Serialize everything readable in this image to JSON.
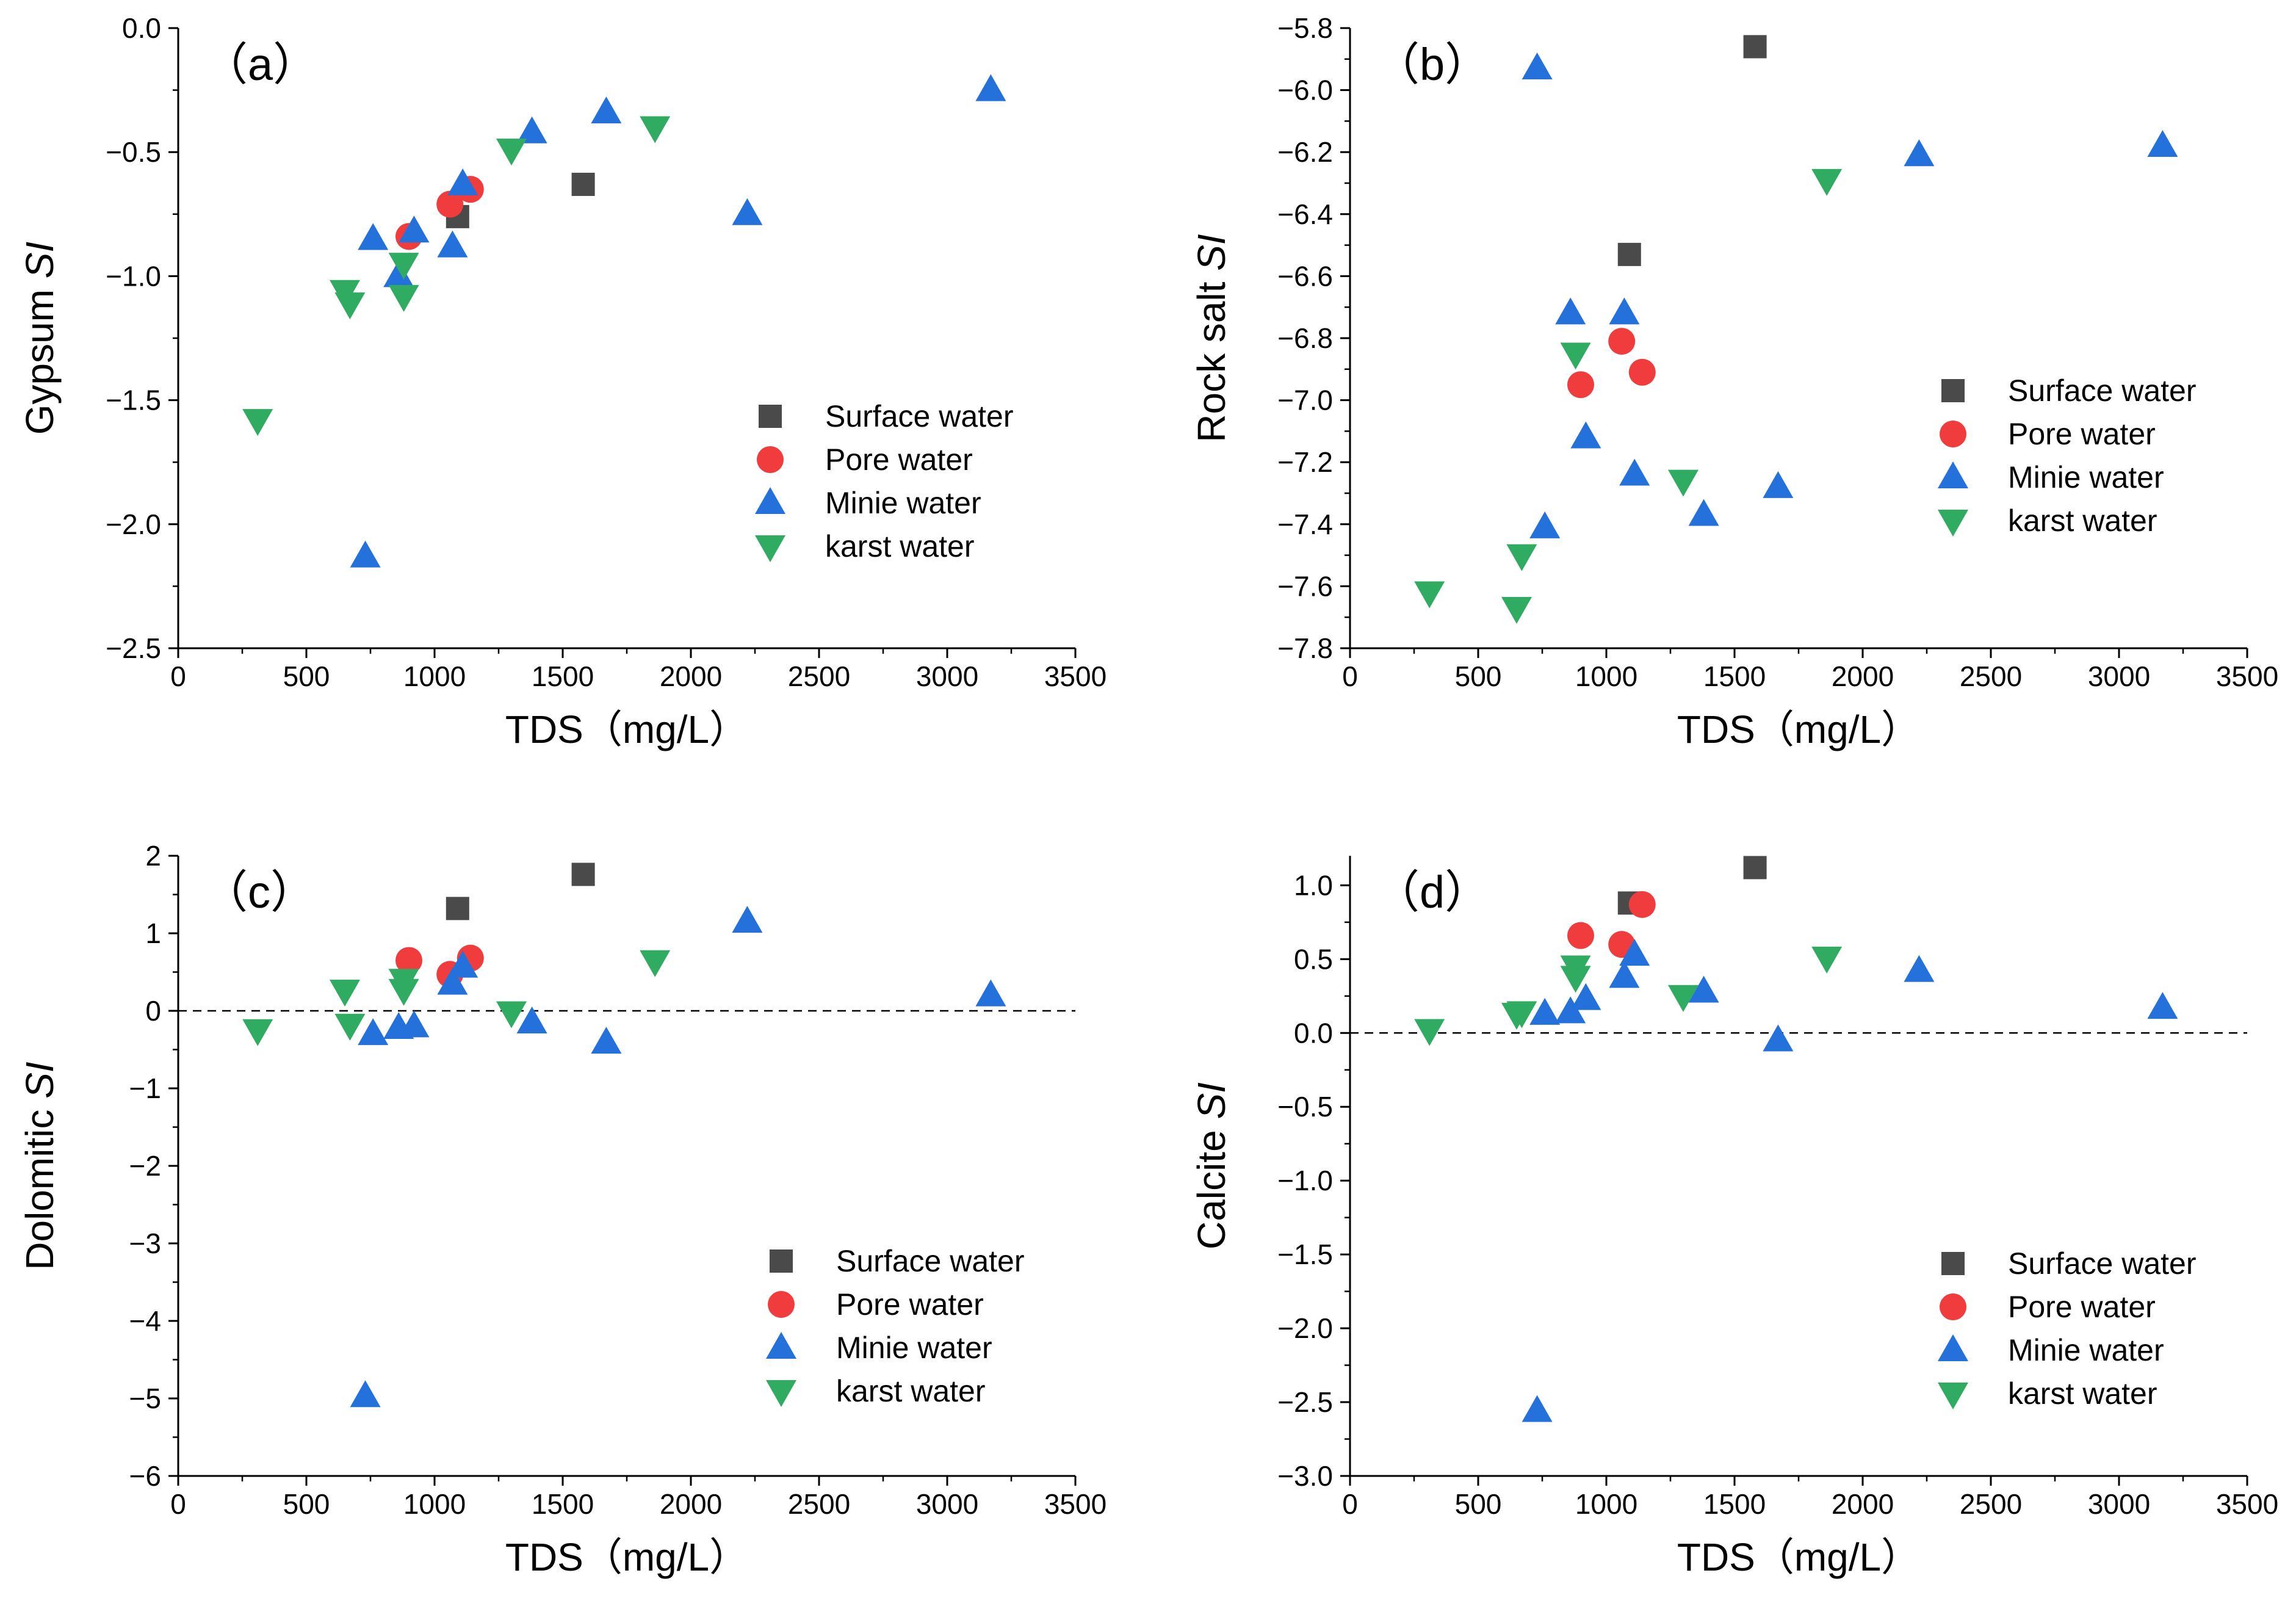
{
  "chart_data": [
    {
      "type": "scatter",
      "panel_label": "（a）",
      "title": "",
      "xlabel": "TDS（mg/L）",
      "ylabel_main": "Gypsum",
      "ylabel_italic": "SI",
      "xlim": [
        0,
        3500
      ],
      "ylim": [
        -2.5,
        0.0
      ],
      "xticks": [
        0,
        500,
        1000,
        1500,
        2000,
        2500,
        3000,
        3500
      ],
      "xtick_labels": [
        "0",
        "500",
        "1000",
        "1500",
        "2000",
        "2500",
        "3000",
        "3500"
      ],
      "yticks": [
        -2.5,
        -2.0,
        -1.5,
        -1.0,
        -0.5,
        0.0
      ],
      "ytick_labels": [
        "−2.5",
        "−2.0",
        "−1.5",
        "−1.0",
        "−0.5",
        "0.0"
      ],
      "reference_line": null,
      "legend_position": "lower-right",
      "series": [
        {
          "name": "Surface water",
          "marker": "square",
          "color": "#4a4a4a",
          "points": [
            [
              1090,
              -0.76
            ],
            [
              1580,
              -0.63
            ]
          ]
        },
        {
          "name": "Pore water",
          "marker": "circle",
          "color": "#f03c3c",
          "points": [
            [
              900,
              -0.84
            ],
            [
              1060,
              -0.71
            ],
            [
              1140,
              -0.65
            ]
          ]
        },
        {
          "name": "Minie water",
          "marker": "triangle-up",
          "color": "#2471dc",
          "points": [
            [
              730,
              -2.13
            ],
            [
              760,
              -0.85
            ],
            [
              860,
              -1.0
            ],
            [
              920,
              -0.82
            ],
            [
              1070,
              -0.88
            ],
            [
              1110,
              -0.63
            ],
            [
              1380,
              -0.42
            ],
            [
              1670,
              -0.34
            ],
            [
              2220,
              -0.75
            ],
            [
              3170,
              -0.25
            ]
          ]
        },
        {
          "name": "karst water",
          "marker": "triangle-down",
          "color": "#2fac62",
          "points": [
            [
              310,
              -1.58
            ],
            [
              650,
              -1.06
            ],
            [
              670,
              -1.11
            ],
            [
              880,
              -0.95
            ],
            [
              880,
              -1.08
            ],
            [
              1300,
              -0.49
            ],
            [
              1860,
              -0.4
            ]
          ]
        }
      ]
    },
    {
      "type": "scatter",
      "panel_label": "（b）",
      "title": "",
      "xlabel": "TDS（mg/L）",
      "ylabel_main": "Rock salt",
      "ylabel_italic": "SI",
      "xlim": [
        0,
        3500
      ],
      "ylim": [
        -7.8,
        -5.8
      ],
      "xticks": [
        0,
        500,
        1000,
        1500,
        2000,
        2500,
        3000,
        3500
      ],
      "xtick_labels": [
        "0",
        "500",
        "1000",
        "1500",
        "2000",
        "2500",
        "3000",
        "3500"
      ],
      "yticks": [
        -7.8,
        -7.6,
        -7.4,
        -7.2,
        -7.0,
        -6.8,
        -6.6,
        -6.4,
        -6.2,
        -6.0,
        -5.8
      ],
      "ytick_labels": [
        "−7.8",
        "−7.6",
        "−7.4",
        "−7.2",
        "−7.0",
        "−6.8",
        "−6.6",
        "−6.4",
        "−6.2",
        "−6.0",
        "−5.8"
      ],
      "reference_line": null,
      "legend_position": "right",
      "series": [
        {
          "name": "Surface water",
          "marker": "square",
          "color": "#4a4a4a",
          "points": [
            [
              1090,
              -6.53
            ],
            [
              1580,
              -5.86
            ]
          ]
        },
        {
          "name": "Pore water",
          "marker": "circle",
          "color": "#f03c3c",
          "points": [
            [
              900,
              -6.95
            ],
            [
              1060,
              -6.81
            ],
            [
              1140,
              -6.91
            ]
          ]
        },
        {
          "name": "Minie water",
          "marker": "triangle-up",
          "color": "#2471dc",
          "points": [
            [
              730,
              -5.93
            ],
            [
              760,
              -7.41
            ],
            [
              860,
              -6.72
            ],
            [
              920,
              -7.12
            ],
            [
              1070,
              -6.72
            ],
            [
              1110,
              -7.24
            ],
            [
              1380,
              -7.37
            ],
            [
              1670,
              -7.28
            ],
            [
              2220,
              -6.21
            ],
            [
              3170,
              -6.18
            ]
          ]
        },
        {
          "name": "karst water",
          "marker": "triangle-down",
          "color": "#2fac62",
          "points": [
            [
              310,
              -7.62
            ],
            [
              650,
              -7.67
            ],
            [
              670,
              -7.5
            ],
            [
              880,
              -6.85
            ],
            [
              1300,
              -7.26
            ],
            [
              1860,
              -6.29
            ]
          ]
        }
      ]
    },
    {
      "type": "scatter",
      "panel_label": "（c）",
      "title": "",
      "xlabel": "TDS（mg/L）",
      "ylabel_main": "Dolomitic",
      "ylabel_italic": "SI",
      "xlim": [
        0,
        3500
      ],
      "ylim": [
        -6,
        2
      ],
      "xticks": [
        0,
        500,
        1000,
        1500,
        2000,
        2500,
        3000,
        3500
      ],
      "xtick_labels": [
        "0",
        "500",
        "1000",
        "1500",
        "2000",
        "2500",
        "3000",
        "3500"
      ],
      "yticks": [
        -6,
        -5,
        -4,
        -3,
        -2,
        -1,
        0,
        1,
        2
      ],
      "ytick_labels": [
        "−6",
        "−5",
        "−4",
        "−3",
        "−2",
        "−1",
        "0",
        "1",
        "2"
      ],
      "reference_line": 0,
      "legend_position": "lower-right",
      "series": [
        {
          "name": "Surface water",
          "marker": "square",
          "color": "#4a4a4a",
          "points": [
            [
              1090,
              1.32
            ],
            [
              1580,
              1.76
            ]
          ]
        },
        {
          "name": "Pore water",
          "marker": "circle",
          "color": "#f03c3c",
          "points": [
            [
              900,
              0.65
            ],
            [
              1060,
              0.47
            ],
            [
              1140,
              0.68
            ]
          ]
        },
        {
          "name": "Minie water",
          "marker": "triangle-up",
          "color": "#2471dc",
          "points": [
            [
              730,
              -4.97
            ],
            [
              760,
              -0.3
            ],
            [
              860,
              -0.22
            ],
            [
              920,
              -0.2
            ],
            [
              1070,
              0.35
            ],
            [
              1110,
              0.57
            ],
            [
              1380,
              -0.15
            ],
            [
              1670,
              -0.41
            ],
            [
              2220,
              1.15
            ],
            [
              3170,
              0.2
            ]
          ]
        },
        {
          "name": "karst water",
          "marker": "triangle-down",
          "color": "#2fac62",
          "points": [
            [
              310,
              -0.25
            ],
            [
              650,
              0.26
            ],
            [
              670,
              -0.18
            ],
            [
              880,
              0.4
            ],
            [
              880,
              0.27
            ],
            [
              1300,
              -0.02
            ],
            [
              1860,
              0.64
            ]
          ]
        }
      ]
    },
    {
      "type": "scatter",
      "panel_label": "（d）",
      "title": "",
      "xlabel": "TDS（mg/L）",
      "ylabel_main": "Calcite",
      "ylabel_italic": "SI",
      "xlim": [
        0,
        3500
      ],
      "ylim": [
        -3.0,
        1.2
      ],
      "xticks": [
        0,
        500,
        1000,
        1500,
        2000,
        2500,
        3000,
        3500
      ],
      "xtick_labels": [
        "0",
        "500",
        "1000",
        "1500",
        "2000",
        "2500",
        "3000",
        "3500"
      ],
      "yticks": [
        -3.0,
        -2.5,
        -2.0,
        -1.5,
        -1.0,
        -0.5,
        0.0,
        0.5,
        1.0
      ],
      "ytick_labels": [
        "−3.0",
        "−2.5",
        "−2.0",
        "−1.5",
        "−1.0",
        "−0.5",
        "0.0",
        "0.5",
        "1.0"
      ],
      "reference_line": 0,
      "legend_position": "lower-right",
      "series": [
        {
          "name": "Surface water",
          "marker": "square",
          "color": "#4a4a4a",
          "points": [
            [
              1090,
              0.88
            ],
            [
              1580,
              1.12
            ]
          ]
        },
        {
          "name": "Pore water",
          "marker": "circle",
          "color": "#f03c3c",
          "points": [
            [
              900,
              0.66
            ],
            [
              1060,
              0.6
            ],
            [
              1140,
              0.87
            ]
          ]
        },
        {
          "name": "Minie water",
          "marker": "triangle-up",
          "color": "#2471dc",
          "points": [
            [
              730,
              -2.56
            ],
            [
              760,
              0.13
            ],
            [
              860,
              0.14
            ],
            [
              920,
              0.23
            ],
            [
              1070,
              0.38
            ],
            [
              1110,
              0.53
            ],
            [
              1380,
              0.28
            ],
            [
              1670,
              -0.05
            ],
            [
              2220,
              0.42
            ],
            [
              3170,
              0.17
            ]
          ]
        },
        {
          "name": "karst water",
          "marker": "triangle-down",
          "color": "#2fac62",
          "points": [
            [
              310,
              0.02
            ],
            [
              650,
              0.13
            ],
            [
              670,
              0.14
            ],
            [
              880,
              0.45
            ],
            [
              880,
              0.38
            ],
            [
              1300,
              0.25
            ],
            [
              1860,
              0.51
            ]
          ]
        }
      ]
    }
  ]
}
